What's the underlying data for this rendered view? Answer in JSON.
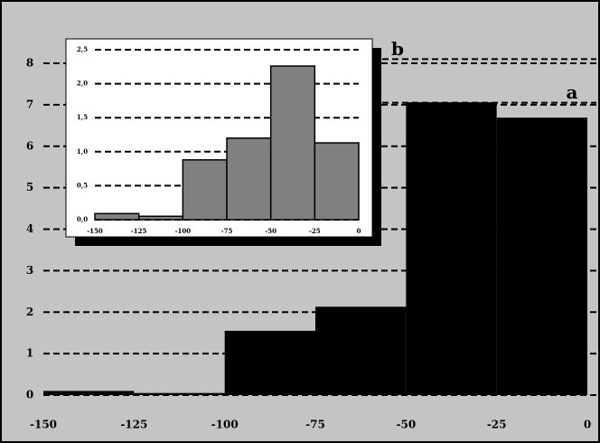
{
  "chart_data": [
    {
      "type": "histogram",
      "bins": [
        -150,
        -125,
        -100,
        -75,
        -50,
        -25,
        0
      ],
      "values": [
        0.1,
        0.05,
        1.55,
        2.13,
        7.06,
        6.69
      ],
      "color": "#000000",
      "xlim": [
        -150,
        0
      ],
      "ylim": [
        0,
        8
      ],
      "xticks": [
        -150,
        -125,
        -100,
        -75,
        -50,
        -25,
        0
      ],
      "yticks": [
        0,
        1,
        2,
        3,
        4,
        5,
        6,
        7,
        8
      ],
      "grid": true,
      "annotations": [
        {
          "text": "a",
          "y": 7.05
        },
        {
          "text": "b",
          "y": 8.1
        }
      ]
    },
    {
      "type": "histogram",
      "bins": [
        -150,
        -125,
        -100,
        -75,
        -50,
        -25,
        0
      ],
      "values": [
        0.09,
        0.05,
        0.88,
        1.2,
        2.26,
        1.13
      ],
      "color": "#808080",
      "xlim": [
        -150,
        0
      ],
      "ylim": [
        0,
        2.5
      ],
      "xticks": [
        -150,
        -125,
        -100,
        -75,
        -50,
        -25,
        0
      ],
      "yticks": [
        {
          "value": 0,
          "label": "0,0"
        },
        {
          "value": 0.5,
          "label": "0,5"
        },
        {
          "value": 1,
          "label": "1,0"
        },
        {
          "value": 1.5,
          "label": "1,5"
        },
        {
          "value": 2,
          "label": "2,0"
        },
        {
          "value": 2.5,
          "label": "2,5"
        }
      ],
      "grid": true
    }
  ]
}
